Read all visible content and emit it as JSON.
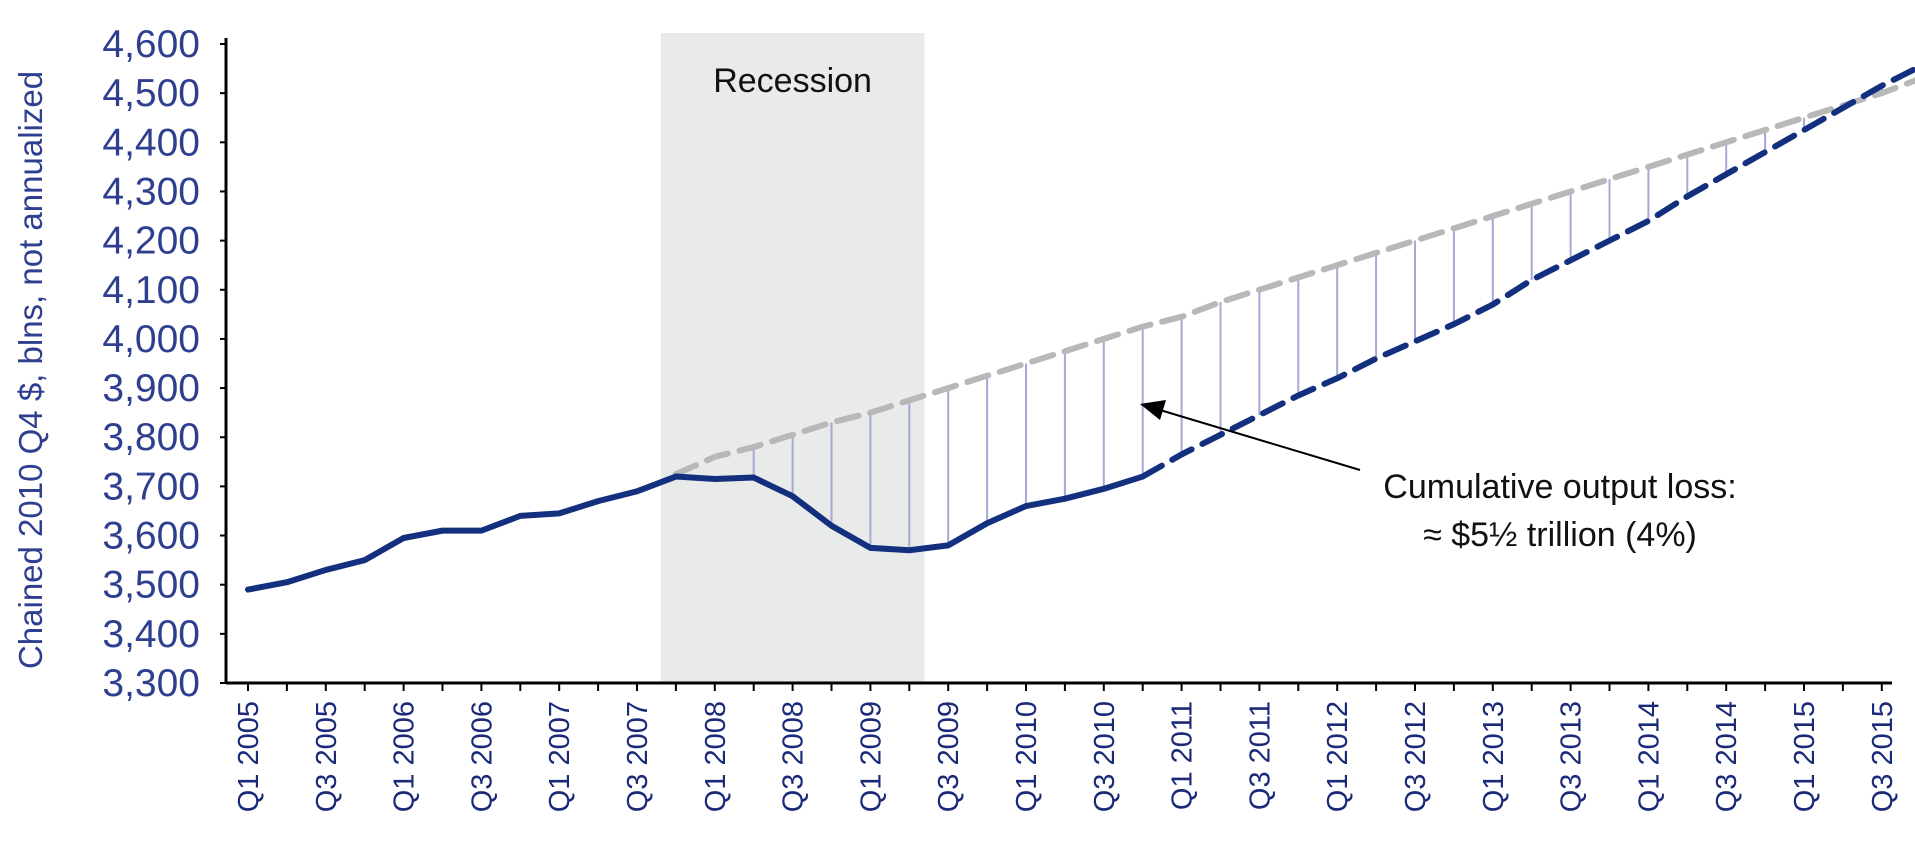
{
  "chart_data": {
    "type": "line",
    "ylabel": "Chained 2010 Q4 $, blns, not annualized",
    "ylim": [
      3300,
      4600
    ],
    "yticks": [
      3300,
      3400,
      3500,
      3600,
      3700,
      3800,
      3900,
      4000,
      4100,
      4200,
      4300,
      4400,
      4500,
      4600
    ],
    "ytick_labels": [
      "3,300",
      "3,400",
      "3,500",
      "3,600",
      "3,700",
      "3,800",
      "3,900",
      "4,000",
      "4,100",
      "4,200",
      "4,300",
      "4,400",
      "4,500",
      "4,600"
    ],
    "x": [
      "Q1 2005",
      "Q2 2005",
      "Q3 2005",
      "Q4 2005",
      "Q1 2006",
      "Q2 2006",
      "Q3 2006",
      "Q4 2006",
      "Q1 2007",
      "Q2 2007",
      "Q3 2007",
      "Q4 2007",
      "Q1 2008",
      "Q2 2008",
      "Q3 2008",
      "Q4 2008",
      "Q1 2009",
      "Q2 2009",
      "Q3 2009",
      "Q4 2009",
      "Q1 2010",
      "Q2 2010",
      "Q3 2010",
      "Q4 2010",
      "Q1 2011",
      "Q2 2011",
      "Q3 2011",
      "Q4 2011",
      "Q1 2012",
      "Q2 2012",
      "Q3 2012",
      "Q4 2012",
      "Q1 2013",
      "Q2 2013",
      "Q3 2013",
      "Q4 2013",
      "Q1 2014",
      "Q2 2014",
      "Q3 2014",
      "Q4 2014",
      "Q1 2015",
      "Q2 2015",
      "Q3 2015",
      "Q4 2015"
    ],
    "xtick_labels": [
      "Q1 2005",
      "Q3 2005",
      "Q1 2006",
      "Q3 2006",
      "Q1 2007",
      "Q3 2007",
      "Q1 2008",
      "Q3 2008",
      "Q1 2009",
      "Q3 2009",
      "Q1 2010",
      "Q3 2010",
      "Q1 2011",
      "Q3 2011",
      "Q1 2012",
      "Q3 2012",
      "Q1 2013",
      "Q3 2013",
      "Q1 2014",
      "Q3 2014",
      "Q1 2015",
      "Q3 2015"
    ],
    "series": [
      {
        "role": "actual-solid",
        "color": "#13307f",
        "values": [
          3490,
          3505,
          3530,
          3550,
          3595,
          3610,
          3610,
          3640,
          3645,
          3670,
          3690,
          3720,
          3715,
          3718,
          3680,
          3620,
          3575,
          3570,
          3580,
          3625,
          3660,
          3675,
          3695,
          3720,
          null,
          null,
          null,
          null,
          null,
          null,
          null,
          null,
          null,
          null,
          null,
          null,
          null,
          null,
          null,
          null,
          null,
          null,
          null,
          null
        ]
      },
      {
        "role": "projected-dashed",
        "color": "#13307f",
        "values": [
          null,
          null,
          null,
          null,
          null,
          null,
          null,
          null,
          null,
          null,
          null,
          null,
          null,
          null,
          null,
          null,
          null,
          null,
          null,
          null,
          null,
          null,
          null,
          3720,
          3765,
          3805,
          3845,
          3885,
          3920,
          3960,
          3995,
          4030,
          4070,
          4120,
          4160,
          4200,
          4240,
          4290,
          4335,
          4380,
          4425,
          4470,
          4515,
          4555
        ]
      },
      {
        "role": "trend-dashed",
        "color": "#b8b8b8",
        "values": [
          null,
          null,
          null,
          null,
          null,
          null,
          null,
          null,
          null,
          null,
          null,
          3725,
          3760,
          3780,
          3805,
          3830,
          3850,
          3875,
          3900,
          3925,
          3950,
          3975,
          4000,
          4025,
          4045,
          4075,
          4100,
          4125,
          4150,
          4175,
          4200,
          4225,
          4250,
          4275,
          4300,
          4325,
          4350,
          4375,
          4400,
          4425,
          4450,
          4475,
          4500,
          4530
        ]
      }
    ],
    "shaded_region": {
      "label": "Recession",
      "start": "Q4 2007",
      "end": "Q2 2009",
      "color": "#e9eaea"
    },
    "annotation": {
      "line1": "Cumulative output loss:",
      "line2": "≈ $5½ trillion (4%)"
    },
    "gap_line_color": "#a8a8d8",
    "legend": "none",
    "grid": false
  }
}
